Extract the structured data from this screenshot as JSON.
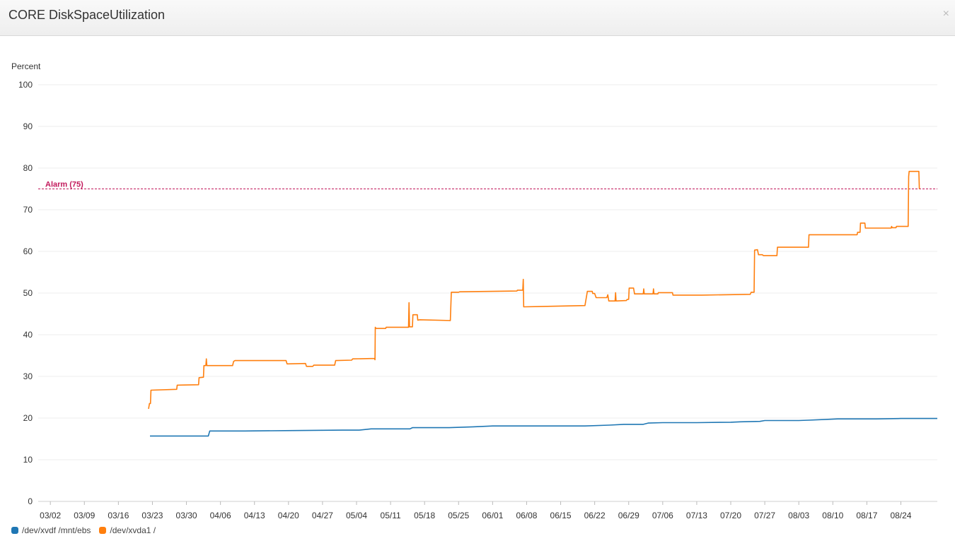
{
  "header": {
    "title": "CORE DiskSpaceUtilization",
    "close_label": "×"
  },
  "chart_data": {
    "type": "line",
    "title": "CORE DiskSpaceUtilization",
    "ylabel": "Percent",
    "xlabel": "",
    "ylim": [
      0,
      100
    ],
    "yticks": [
      0,
      10,
      20,
      30,
      40,
      50,
      60,
      70,
      80,
      90,
      100
    ],
    "xlim": [
      -2.5,
      182.5
    ],
    "xticks": [
      {
        "day": 0,
        "label": "03/02"
      },
      {
        "day": 7,
        "label": "03/09"
      },
      {
        "day": 14,
        "label": "03/16"
      },
      {
        "day": 21,
        "label": "03/23"
      },
      {
        "day": 28,
        "label": "03/30"
      },
      {
        "day": 35,
        "label": "04/06"
      },
      {
        "day": 42,
        "label": "04/13"
      },
      {
        "day": 49,
        "label": "04/20"
      },
      {
        "day": 56,
        "label": "04/27"
      },
      {
        "day": 63,
        "label": "05/04"
      },
      {
        "day": 70,
        "label": "05/11"
      },
      {
        "day": 77,
        "label": "05/18"
      },
      {
        "day": 84,
        "label": "05/25"
      },
      {
        "day": 91,
        "label": "06/01"
      },
      {
        "day": 98,
        "label": "06/08"
      },
      {
        "day": 105,
        "label": "06/15"
      },
      {
        "day": 112,
        "label": "06/22"
      },
      {
        "day": 119,
        "label": "06/29"
      },
      {
        "day": 126,
        "label": "07/06"
      },
      {
        "day": 133,
        "label": "07/13"
      },
      {
        "day": 140,
        "label": "07/20"
      },
      {
        "day": 147,
        "label": "07/27"
      },
      {
        "day": 154,
        "label": "08/03"
      },
      {
        "day": 161,
        "label": "08/10"
      },
      {
        "day": 168,
        "label": "08/17"
      },
      {
        "day": 175,
        "label": "08/24"
      }
    ],
    "grid": true,
    "legend_position": "bottom-left",
    "threshold": {
      "value": 75,
      "label": "Alarm (75)",
      "color": "#c2185b"
    },
    "series": [
      {
        "name": "/dev/xvdf /mnt/ebs",
        "color": "#1f77b4",
        "points": [
          [
            20.5,
            15.7
          ],
          [
            32.5,
            15.7
          ],
          [
            32.8,
            16.9
          ],
          [
            40,
            16.9
          ],
          [
            50,
            17.0
          ],
          [
            60,
            17.1
          ],
          [
            63.5,
            17.1
          ],
          [
            66,
            17.4
          ],
          [
            74,
            17.4
          ],
          [
            74.5,
            17.7
          ],
          [
            82,
            17.7
          ],
          [
            87,
            17.9
          ],
          [
            91,
            18.1
          ],
          [
            100,
            18.1
          ],
          [
            110,
            18.1
          ],
          [
            115,
            18.3
          ],
          [
            118,
            18.5
          ],
          [
            122,
            18.5
          ],
          [
            123,
            18.8
          ],
          [
            126,
            18.9
          ],
          [
            133,
            18.9
          ],
          [
            140,
            19.0
          ],
          [
            142,
            19.1
          ],
          [
            146,
            19.2
          ],
          [
            147,
            19.4
          ],
          [
            154,
            19.4
          ],
          [
            156,
            19.5
          ],
          [
            160,
            19.7
          ],
          [
            162,
            19.8
          ],
          [
            170,
            19.8
          ],
          [
            175,
            19.9
          ],
          [
            182.5,
            19.9
          ]
        ]
      },
      {
        "name": "/dev/xvda1 /",
        "color": "#ff7f0e",
        "points": [
          [
            20.2,
            22.2
          ],
          [
            20.4,
            23.5
          ],
          [
            20.6,
            23.5
          ],
          [
            20.7,
            26.7
          ],
          [
            26,
            26.9
          ],
          [
            26.1,
            27.9
          ],
          [
            30.5,
            28.0
          ],
          [
            30.6,
            29.7
          ],
          [
            31.5,
            29.8
          ],
          [
            31.6,
            32.6
          ],
          [
            32,
            32.6
          ],
          [
            32.1,
            34.2
          ],
          [
            32.2,
            32.6
          ],
          [
            37.5,
            32.6
          ],
          [
            37.7,
            33.6
          ],
          [
            38,
            33.8
          ],
          [
            48.5,
            33.8
          ],
          [
            48.7,
            33.0
          ],
          [
            52.5,
            33.1
          ],
          [
            52.7,
            32.4
          ],
          [
            54,
            32.4
          ],
          [
            54.2,
            32.7
          ],
          [
            58.5,
            32.7
          ],
          [
            58.7,
            33.8
          ],
          [
            62,
            33.9
          ],
          [
            62.2,
            34.2
          ],
          [
            66.7,
            34.3
          ],
          [
            66.8,
            34.0
          ],
          [
            66.85,
            41.8
          ],
          [
            67,
            41.5
          ],
          [
            69,
            41.5
          ],
          [
            69.1,
            41.8
          ],
          [
            73.7,
            41.8
          ],
          [
            73.8,
            47.7
          ],
          [
            73.9,
            41.9
          ],
          [
            74.5,
            41.9
          ],
          [
            74.6,
            44.8
          ],
          [
            75.5,
            44.8
          ],
          [
            75.6,
            43.5
          ],
          [
            76,
            43.6
          ],
          [
            82.3,
            43.4
          ],
          [
            82.5,
            50.2
          ],
          [
            84,
            50.2
          ],
          [
            84.2,
            50.3
          ],
          [
            96,
            50.5
          ],
          [
            96.1,
            50.7
          ],
          [
            97.2,
            50.7
          ],
          [
            97.3,
            53.3
          ],
          [
            97.4,
            46.7
          ],
          [
            110,
            47.0
          ],
          [
            110.5,
            50.4
          ],
          [
            111.5,
            50.4
          ],
          [
            111.6,
            49.9
          ],
          [
            112,
            49.9
          ],
          [
            112.3,
            48.9
          ],
          [
            114.5,
            48.9
          ],
          [
            114.7,
            49.6
          ],
          [
            114.9,
            48.1
          ],
          [
            116.2,
            48.1
          ],
          [
            116.3,
            50.1
          ],
          [
            116.4,
            48.1
          ],
          [
            118.5,
            48.2
          ],
          [
            118.7,
            48.5
          ],
          [
            119,
            48.5
          ],
          [
            119.1,
            51.2
          ],
          [
            120,
            51.2
          ],
          [
            120.2,
            49.8
          ],
          [
            122,
            49.8
          ],
          [
            122.1,
            51.0
          ],
          [
            122.2,
            49.8
          ],
          [
            124,
            49.8
          ],
          [
            124.1,
            51.0
          ],
          [
            124.2,
            49.8
          ],
          [
            125,
            49.8
          ],
          [
            125.1,
            50.1
          ],
          [
            128,
            50.1
          ],
          [
            128.1,
            49.5
          ],
          [
            134,
            49.5
          ],
          [
            144,
            49.7
          ],
          [
            144.2,
            50.2
          ],
          [
            144.8,
            50.2
          ],
          [
            144.9,
            60.3
          ],
          [
            145.5,
            60.4
          ],
          [
            145.7,
            59.2
          ],
          [
            146.5,
            59.2
          ],
          [
            146.7,
            59.0
          ],
          [
            149.5,
            59.0
          ],
          [
            149.6,
            61.0
          ],
          [
            156,
            61.0
          ],
          [
            156.1,
            64.0
          ],
          [
            166,
            64.0
          ],
          [
            166.1,
            64.6
          ],
          [
            166.6,
            64.6
          ],
          [
            166.7,
            66.8
          ],
          [
            167.6,
            66.8
          ],
          [
            167.7,
            65.6
          ],
          [
            173,
            65.6
          ],
          [
            173.1,
            66.0
          ],
          [
            173.2,
            65.7
          ],
          [
            174,
            65.7
          ],
          [
            174.1,
            66.0
          ],
          [
            176.5,
            66.0
          ],
          [
            176.6,
            78.0
          ],
          [
            176.7,
            79.2
          ],
          [
            178.7,
            79.2
          ],
          [
            178.8,
            75.0
          ]
        ]
      }
    ]
  }
}
